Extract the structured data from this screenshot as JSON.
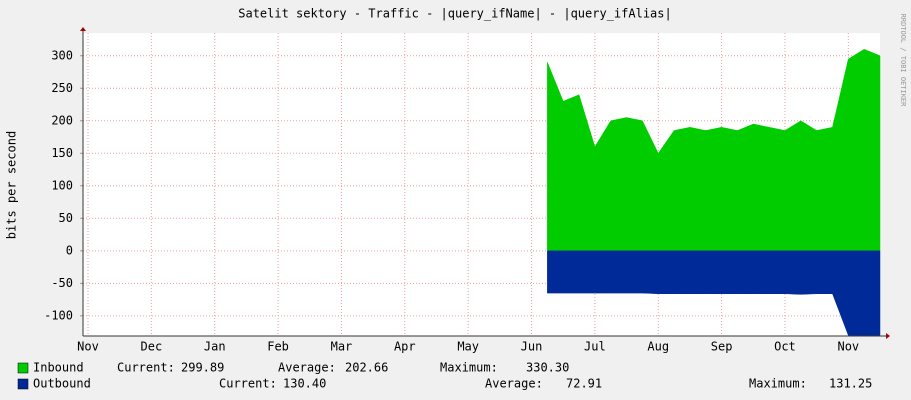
{
  "chart_data": {
    "type": "area",
    "title": "Satelit sektory - Traffic - |query_ifName| - |query_ifAlias|",
    "y_label": "bits per second",
    "side_text": "RRDTOOL / TOBI OETIKER",
    "categories": [
      "Nov",
      null,
      null,
      null,
      "Dec",
      null,
      null,
      null,
      "Jan",
      null,
      null,
      null,
      "Feb",
      null,
      null,
      null,
      "Mar",
      null,
      null,
      null,
      "Apr",
      null,
      null,
      null,
      "May",
      null,
      null,
      null,
      "Jun",
      null,
      null,
      null,
      "Jul",
      null,
      null,
      null,
      "Aug",
      null,
      null,
      null,
      "Sep",
      null,
      null,
      null,
      "Oct",
      null,
      null,
      null,
      "Nov",
      null,
      null
    ],
    "series": [
      {
        "name": "Inbound",
        "color": "#00cc00",
        "values": [
          null,
          null,
          null,
          null,
          null,
          null,
          null,
          null,
          null,
          null,
          null,
          null,
          null,
          null,
          null,
          null,
          null,
          null,
          null,
          null,
          null,
          null,
          null,
          null,
          null,
          null,
          null,
          null,
          null,
          290,
          230,
          240,
          160,
          200,
          205,
          200,
          150,
          185,
          190,
          185,
          190,
          185,
          195,
          190,
          185,
          200,
          185,
          190,
          295,
          310,
          300
        ],
        "stats": [
          {
            "name": "Current:",
            "value": "299.89"
          },
          {
            "name": "Average:",
            "value": "202.66"
          },
          {
            "name": "Maximum:",
            "value": "330.30"
          }
        ]
      },
      {
        "name": "Outbound",
        "color": "#002a97",
        "values": [
          null,
          null,
          null,
          null,
          null,
          null,
          null,
          null,
          null,
          null,
          null,
          null,
          null,
          null,
          null,
          null,
          null,
          null,
          null,
          null,
          null,
          null,
          null,
          null,
          null,
          null,
          null,
          null,
          null,
          -65,
          -65,
          -65,
          -65,
          -65,
          -65,
          -65,
          -66,
          -66,
          -66,
          -66,
          -66,
          -66,
          -66,
          -66,
          -66,
          -67,
          -66,
          -66,
          -130,
          -130,
          -130
        ],
        "stats": [
          {
            "name": "Current:",
            "value": "130.40"
          },
          {
            "name": "Average:",
            "value": "72.91"
          },
          {
            "name": "Maximum:",
            "value": "131.25"
          }
        ]
      }
    ],
    "ylim": [
      -131,
      335
    ],
    "yticks": [
      -100,
      -50,
      0,
      50,
      100,
      150,
      200,
      250,
      300
    ],
    "grid": true
  }
}
